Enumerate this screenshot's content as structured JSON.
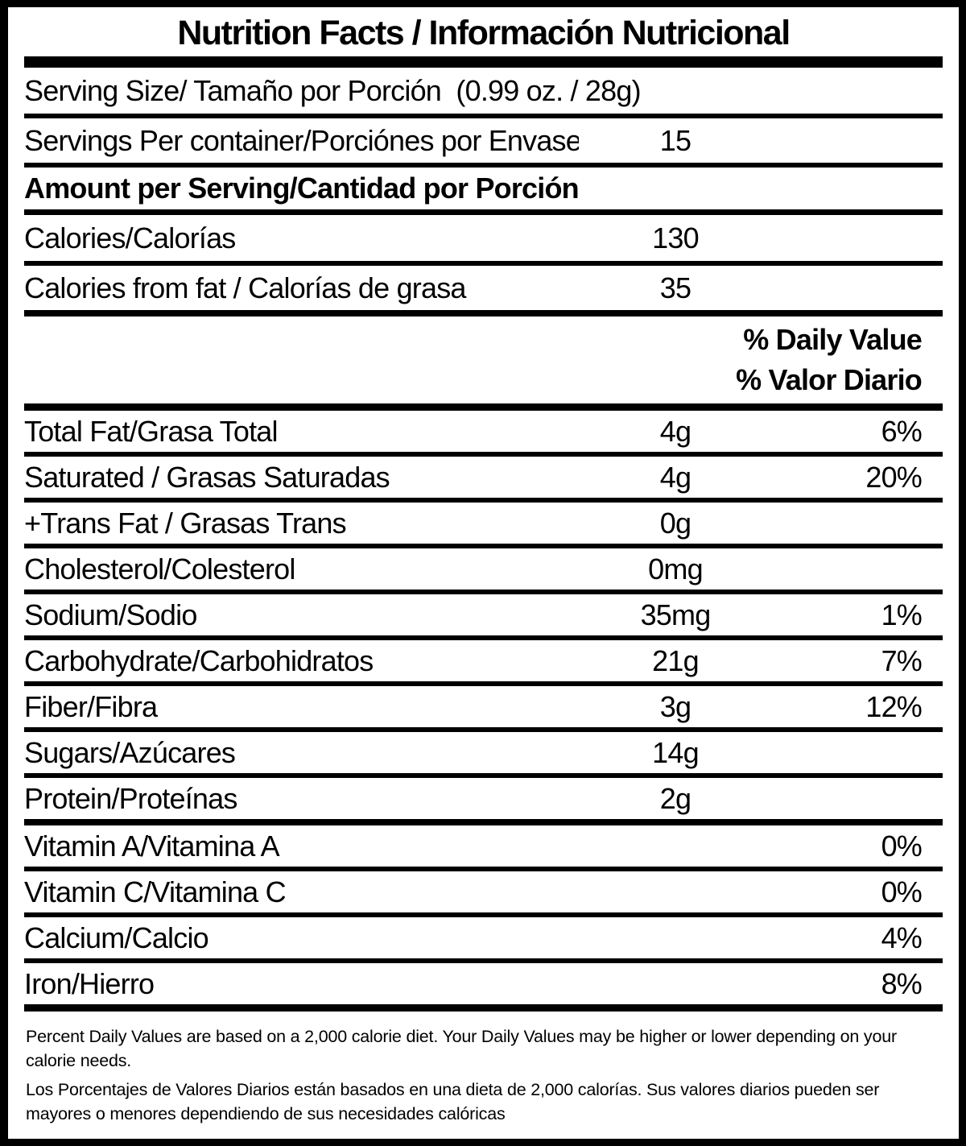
{
  "title": "Nutrition Facts / Información Nutricional",
  "serving": {
    "serving_size": "Serving Size/ Tamaño por Porción  (0.99 oz. / 28g)",
    "servings_per_container_label": "Servings Per container/Porciónes por Envase:",
    "servings_per_container_value": "15",
    "amount_per_serving_heading": "Amount per Serving/Cantidad por Porción"
  },
  "calories": {
    "label": "Calories/Calorías",
    "value": "130"
  },
  "calories_from_fat": {
    "label": "Calories from fat / Calorías de grasa",
    "value": "35"
  },
  "daily_value_header": {
    "en": "% Daily Value",
    "es": "% Valor Diario"
  },
  "nutrients": [
    {
      "label": "Total Fat/Grasa Total",
      "amount": "4g",
      "dv": "6%"
    },
    {
      "label": "Saturated / Grasas Saturadas",
      "amount": "4g",
      "dv": "20%"
    },
    {
      "label": "+Trans Fat / Grasas Trans",
      "amount": "0g",
      "dv": ""
    },
    {
      "label": "Cholesterol/Colesterol",
      "amount": "0mg",
      "dv": ""
    },
    {
      "label": "Sodium/Sodio",
      "amount": "35mg",
      "dv": "1%"
    },
    {
      "label": "Carbohydrate/Carbohidratos",
      "amount": "21g",
      "dv": "7%"
    },
    {
      "label": "Fiber/Fibra",
      "amount": "3g",
      "dv": "12%"
    },
    {
      "label": "Sugars/Azúcares",
      "amount": "14g",
      "dv": ""
    },
    {
      "label": "Protein/Proteínas",
      "amount": "2g",
      "dv": ""
    },
    {
      "label": "Vitamin A/Vitamina A",
      "amount": "",
      "dv": "0%"
    },
    {
      "label": "Vitamin C/Vitamina C",
      "amount": "",
      "dv": "0%"
    },
    {
      "label": "Calcium/Calcio",
      "amount": "",
      "dv": "4%"
    },
    {
      "label": "Iron/Hierro",
      "amount": "",
      "dv": "8%"
    }
  ],
  "footnotes": {
    "en": "Percent Daily Values are based on a 2,000 calorie diet. Your Daily Values may be higher or lower depending on your calorie needs.",
    "es": "Los Porcentajes de Valores Diarios están basados en una dieta de 2,000 calorías. Sus valores diarios pueden ser mayores o menores dependiendo de sus necesidades calóricas"
  },
  "colors": {
    "text": "#000000",
    "background": "#ffffff"
  }
}
